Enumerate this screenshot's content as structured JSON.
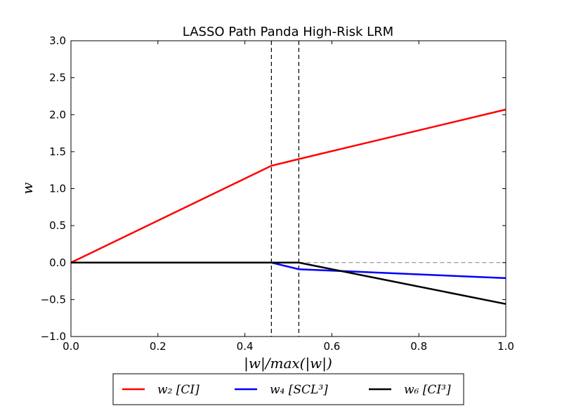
{
  "chart_data": {
    "type": "line",
    "title": "LASSO Path Panda High-Risk LRM",
    "xlabel": "|w|/max(|w|)",
    "ylabel": "w",
    "xlim": [
      0.0,
      1.0
    ],
    "ylim": [
      -1.0,
      3.0
    ],
    "x_ticks": [
      "0.0",
      "0.2",
      "0.4",
      "0.6",
      "0.8",
      "1.0"
    ],
    "y_ticks": [
      "−1.0",
      "−0.5",
      "0.0",
      "0.5",
      "1.0",
      "1.5",
      "2.0",
      "2.5",
      "3.0"
    ],
    "grid": false,
    "legend_position": "bottom-center-outside",
    "reference_lines": {
      "vertical_dashed_x": [
        0.461,
        0.524
      ],
      "horizontal_dashed_y": 0.0
    },
    "series": [
      {
        "name": "w₂ [CI]",
        "color": "#ff0000",
        "x": [
          0.0,
          0.461,
          0.524,
          1.0
        ],
        "y": [
          0.0,
          1.31,
          1.4,
          2.07
        ]
      },
      {
        "name": "w₄ [SCL³]",
        "color": "#0000ff",
        "x": [
          0.0,
          0.461,
          0.524,
          1.0
        ],
        "y": [
          0.0,
          0.0,
          -0.09,
          -0.21
        ]
      },
      {
        "name": "w₆ [CI³]",
        "color": "#000000",
        "x": [
          0.0,
          0.461,
          0.524,
          1.0
        ],
        "y": [
          0.0,
          0.0,
          0.0,
          -0.56
        ]
      }
    ]
  }
}
